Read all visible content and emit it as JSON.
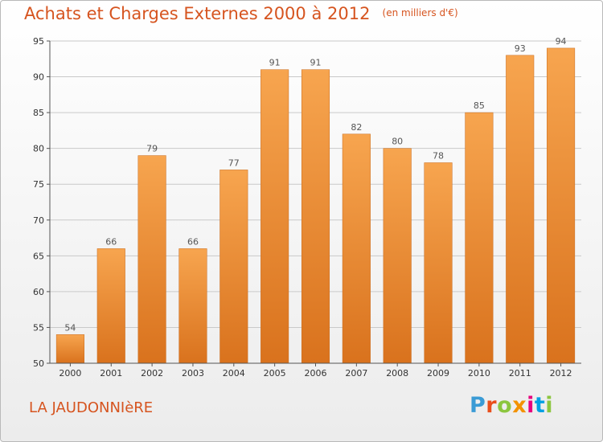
{
  "header": {
    "title": "Achats et Charges Externes 2000 à 2012",
    "subtitle": "(en milliers d'€)"
  },
  "footer": {
    "place": "LA JAUDONNIèRE",
    "logo_letters": [
      "P",
      "r",
      "o",
      "x",
      "i",
      "t",
      "i"
    ],
    "logo_colors": [
      "#3a9bd5",
      "#e94e1b",
      "#8cc63f",
      "#f39200",
      "#e6007e",
      "#00a0e3",
      "#8cc63f"
    ]
  },
  "chart_data": {
    "type": "bar",
    "categories": [
      "2000",
      "2001",
      "2002",
      "2003",
      "2004",
      "2005",
      "2006",
      "2007",
      "2008",
      "2009",
      "2010",
      "2011",
      "2012"
    ],
    "values": [
      54,
      66,
      79,
      66,
      77,
      91,
      91,
      82,
      80,
      78,
      85,
      93,
      94
    ],
    "ylim": [
      50,
      95
    ],
    "yticks": [
      50,
      55,
      60,
      65,
      70,
      75,
      80,
      85,
      90,
      95
    ],
    "grid": true,
    "bar_color_top": "#f7a54f",
    "bar_color_bottom": "#d9721d"
  }
}
